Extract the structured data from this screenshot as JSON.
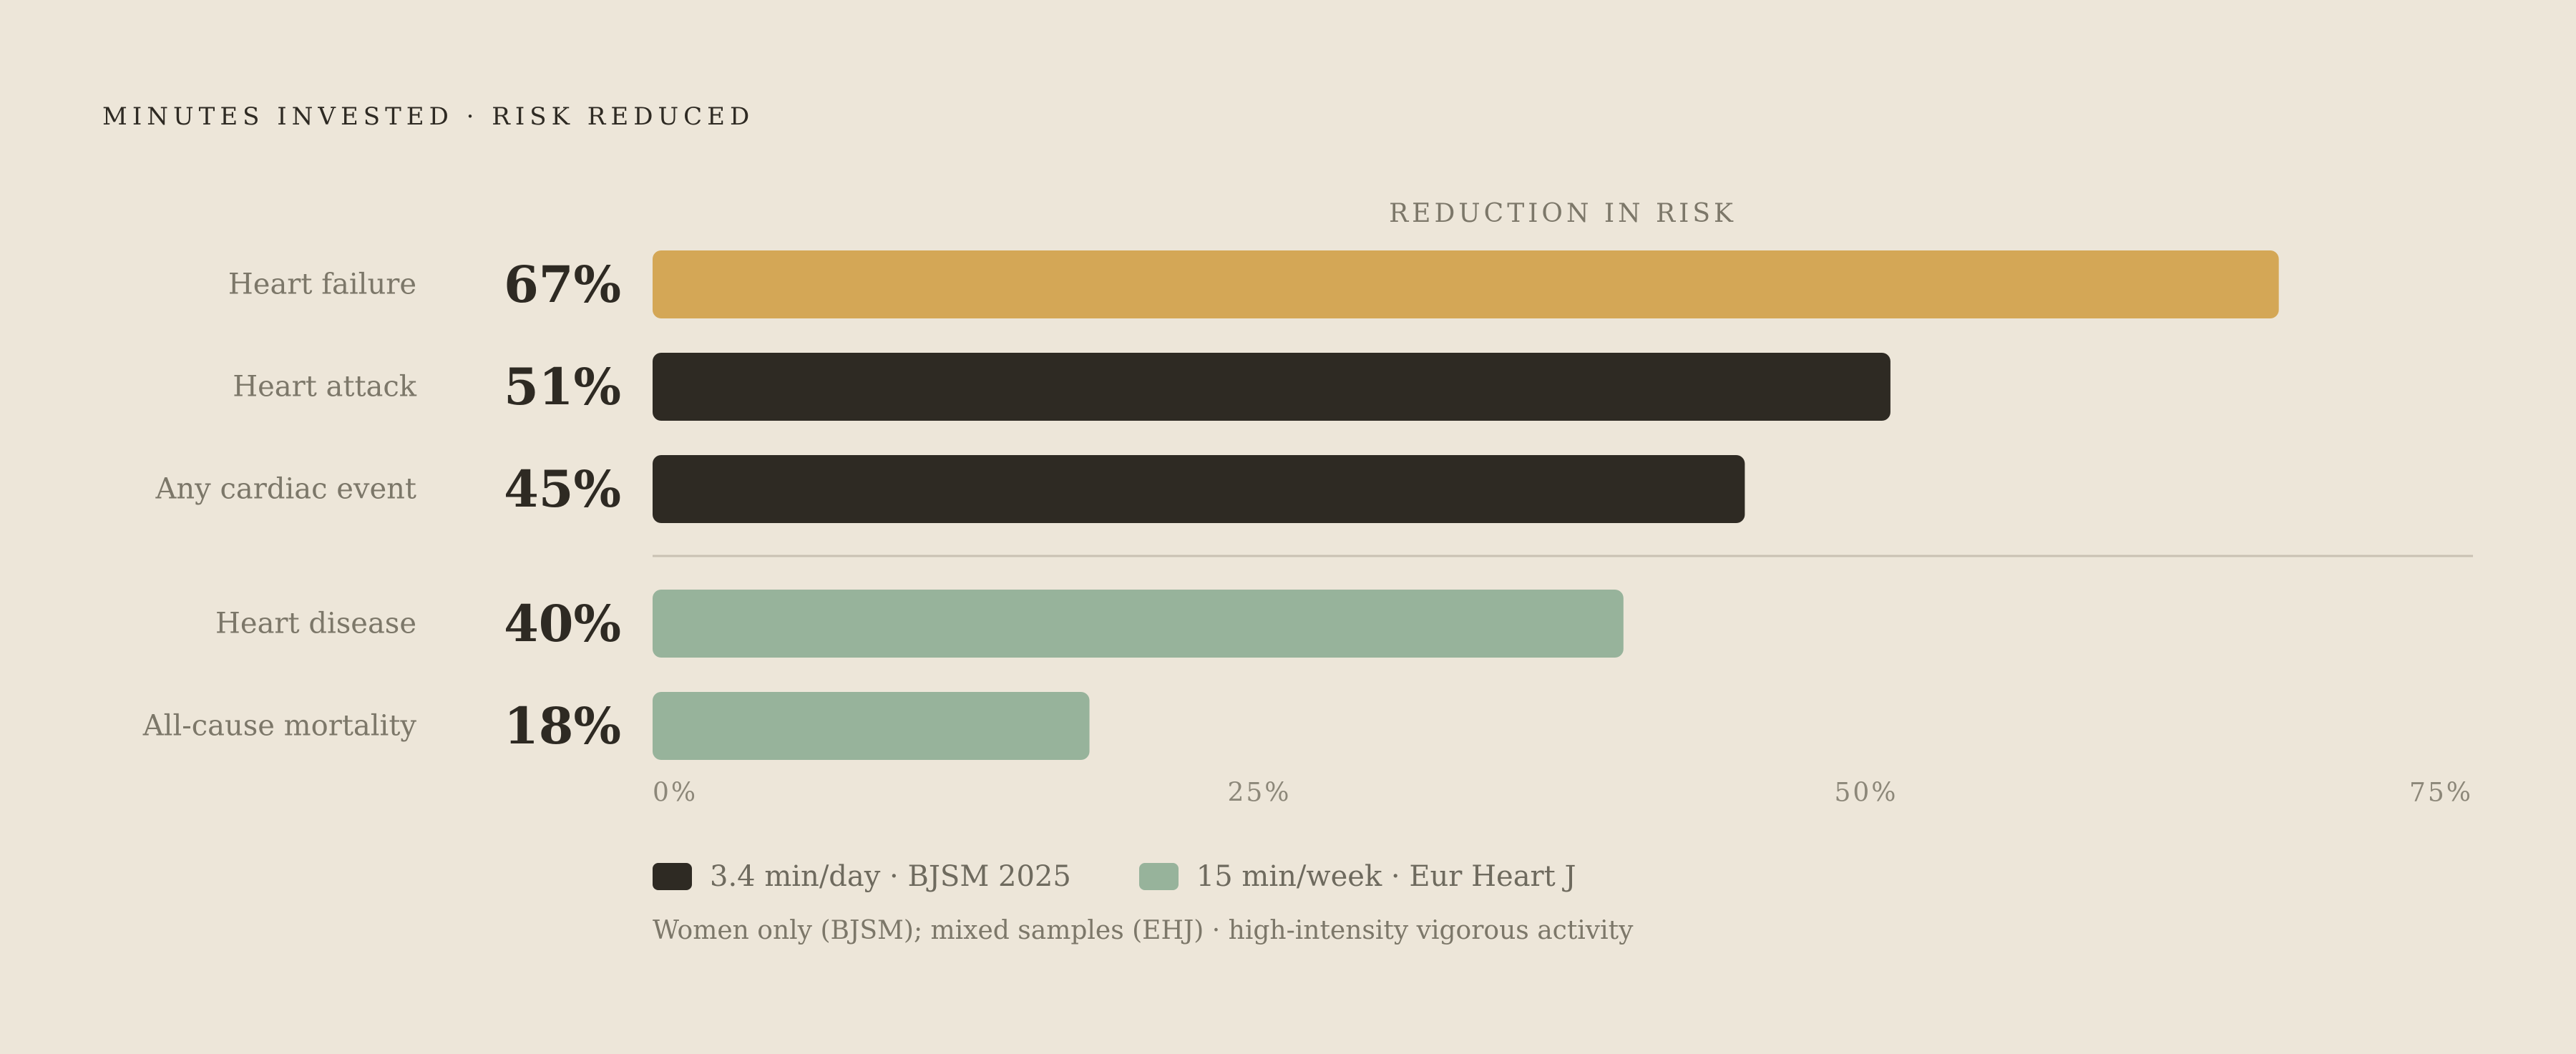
{
  "kicker": "MINUTES INVESTED · RISK REDUCED",
  "colors": {
    "background": "#ede6d9",
    "highlight": "#d4a756",
    "bjsm": "#2e2a23",
    "ehj": "#97b39b",
    "divider": "#c9c1b3"
  },
  "chart_data": {
    "type": "bar",
    "orientation": "horizontal",
    "title": "MINUTES INVESTED · RISK REDUCED",
    "xlabel": "REDUCTION IN RISK",
    "xlim": [
      0,
      75
    ],
    "ticks": [
      {
        "value": 0,
        "label": "0%"
      },
      {
        "value": 25,
        "label": "25%"
      },
      {
        "value": 50,
        "label": "50%"
      },
      {
        "value": 75,
        "label": "75%"
      }
    ],
    "bars": [
      {
        "category": "Heart failure",
        "value": 67,
        "label": "67%",
        "series": "3.4 min/day · BJSM 2025",
        "highlight": true
      },
      {
        "category": "Heart attack",
        "value": 51,
        "label": "51%",
        "series": "3.4 min/day · BJSM 2025",
        "highlight": false
      },
      {
        "category": "Any cardiac event",
        "value": 45,
        "label": "45%",
        "series": "3.4 min/day · BJSM 2025",
        "highlight": false
      },
      {
        "category": "Heart disease",
        "value": 40,
        "label": "40%",
        "series": "15 min/week · Eur Heart J",
        "highlight": false
      },
      {
        "category": "All-cause mortality",
        "value": 18,
        "label": "18%",
        "series": "15 min/week · Eur Heart J",
        "highlight": false
      }
    ],
    "legend": [
      {
        "name": "3.4 min/day · BJSM 2025",
        "color": "#2e2a23"
      },
      {
        "name": "15 min/week · Eur Heart J",
        "color": "#97b39b"
      }
    ],
    "footnote": "Women only (BJSM); mixed samples (EHJ) · high-intensity vigorous activity"
  }
}
